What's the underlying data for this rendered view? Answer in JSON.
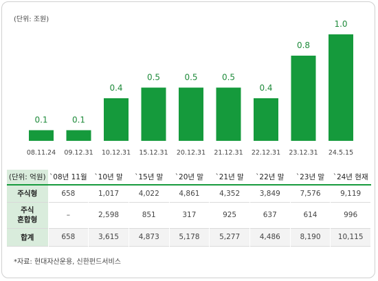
{
  "chart_data": {
    "type": "bar",
    "unit_label": "(단위: 조원)",
    "categories": [
      "08.11.24",
      "09.12.31",
      "10.12.31",
      "15.12.31",
      "20.12.31",
      "21.12.31",
      "22.12.31",
      "23.12.31",
      "24.5.15"
    ],
    "values": [
      0.1,
      0.1,
      0.4,
      0.5,
      0.5,
      0.5,
      0.4,
      0.8,
      1.0
    ],
    "value_labels": [
      "0.1",
      "0.1",
      "0.4",
      "0.5",
      "0.5",
      "0.5",
      "0.4",
      "0.8",
      "1.0"
    ],
    "ylim": [
      0,
      1.0
    ],
    "grid": false,
    "colors": {
      "bar": "#159a3c",
      "value_label": "#1e8a3a"
    }
  },
  "table": {
    "unit_label": "(단위: 억원)",
    "columns": [
      "`08년 11월",
      "`10년 말",
      "`15년 말",
      "`20년 말",
      "`21년 말",
      "`22년 말",
      "`23년 말",
      "`24년 현재"
    ],
    "rows": [
      {
        "label": "주식형",
        "values": [
          "658",
          "1,017",
          "4,022",
          "4,861",
          "4,352",
          "3,849",
          "7,576",
          "9,119"
        ]
      },
      {
        "label": "주식\n혼합형",
        "values": [
          "–",
          "2,598",
          "851",
          "317",
          "925",
          "637",
          "614",
          "996"
        ]
      },
      {
        "label": "합계",
        "values": [
          "658",
          "3,615",
          "4,873",
          "5,178",
          "5,277",
          "4,486",
          "8,190",
          "10,115"
        ]
      }
    ],
    "colors": {
      "header_bg": "#d9ecdc",
      "accent": "#159a3c"
    }
  },
  "source": "*자료: 현대자산운용, 신한펀드서비스"
}
